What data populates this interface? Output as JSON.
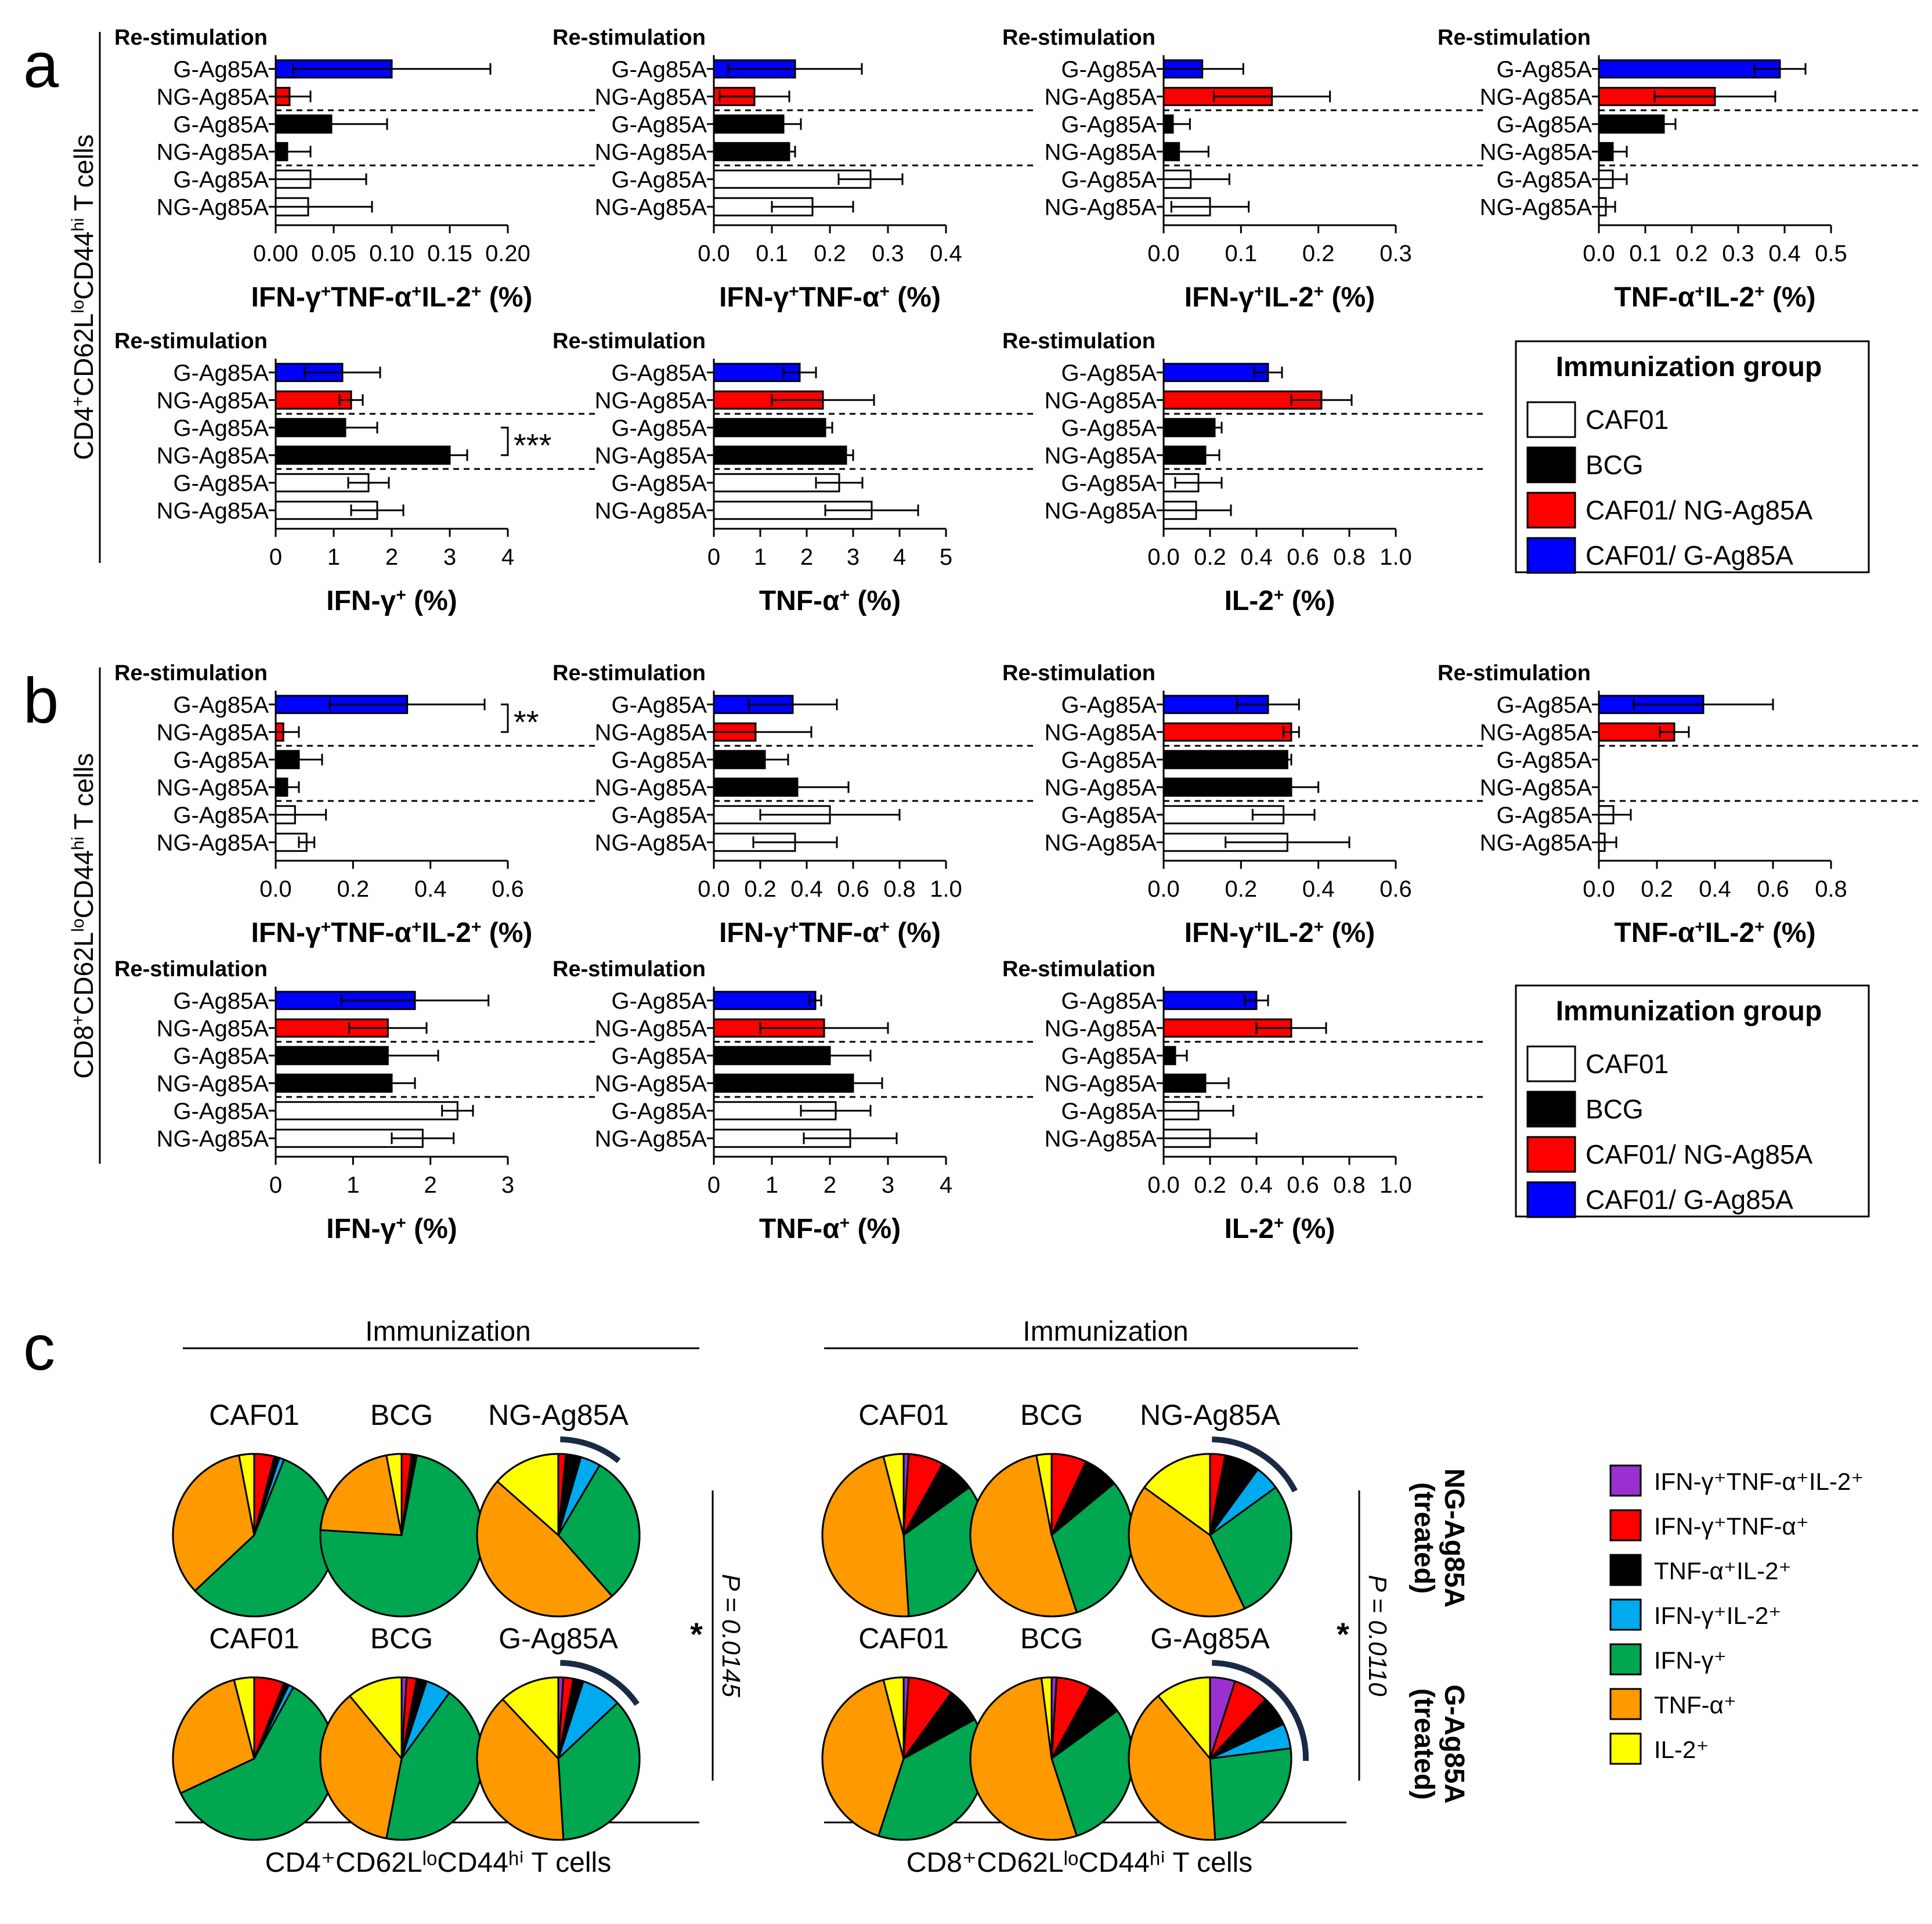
{
  "panels": {
    "a": {
      "letter": "a",
      "row_title_pre": "CD4",
      "row_title_mid": "CD62L",
      "row_title_lo": "lo",
      "row_title_cd44": "CD44",
      "row_title_hi": "hi",
      "row_title_end": " T cells"
    },
    "b": {
      "letter": "b",
      "row_title_pre": "CD8",
      "row_title_mid": "CD62L",
      "row_title_lo": "lo",
      "row_title_cd44": "CD44",
      "row_title_hi": "hi",
      "row_title_end": " T cells"
    },
    "c": {
      "letter": "c"
    }
  },
  "common": {
    "restim_label": "Re-stimulation",
    "row_labels": [
      "G-Ag85A",
      "NG-Ag85A",
      "G-Ag85A",
      "NG-Ag85A",
      "G-Ag85A",
      "NG-Ag85A"
    ],
    "row_groups": [
      "CAF01/ G-Ag85A",
      "CAF01/ NG-Ag85A",
      "BCG",
      "BCG",
      "CAF01",
      "CAF01"
    ]
  },
  "legend_bar": {
    "title": "Immunization group",
    "items": [
      {
        "label": "CAF01",
        "color": "#ffffff"
      },
      {
        "label": "BCG",
        "color": "#000000"
      },
      {
        "label": "CAF01/ NG-Ag85A",
        "color": "#ff0000"
      },
      {
        "label": "CAF01/ G-Ag85A",
        "color": "#0000ff"
      }
    ]
  },
  "chart_data": [
    {
      "type": "bar",
      "panel": "a",
      "title": "IFN-γ⁺TNF-α⁺IL-2⁺ (%)",
      "xlabel": "IFN-γ+TNF-α+IL-2+ (%)",
      "xlim": [
        0,
        0.2
      ],
      "ticks": [
        0.0,
        0.05,
        0.1,
        0.15,
        0.2
      ],
      "tick_labels": [
        "0.00",
        "0.05",
        "0.10",
        "0.15",
        "0.20"
      ],
      "values": [
        0.1,
        0.012,
        0.048,
        0.01,
        0.03,
        0.028
      ],
      "errors": [
        0.085,
        0.018,
        0.048,
        0.02,
        0.048,
        0.055
      ],
      "sig": ""
    },
    {
      "type": "bar",
      "panel": "a",
      "title": "IFN-γ⁺TNF-α⁺ (%)",
      "xlabel": "IFN-γ+TNF-α+ (%)",
      "xlim": [
        0,
        0.4
      ],
      "ticks": [
        0.0,
        0.1,
        0.2,
        0.3,
        0.4
      ],
      "tick_labels": [
        "0.0",
        "0.1",
        "0.2",
        "0.3",
        "0.4"
      ],
      "values": [
        0.14,
        0.07,
        0.12,
        0.13,
        0.27,
        0.17
      ],
      "errors": [
        0.115,
        0.06,
        0.03,
        0.01,
        0.055,
        0.07
      ],
      "sig": ""
    },
    {
      "type": "bar",
      "panel": "a",
      "title": "IFN-γ⁺IL-2⁺ (%)",
      "xlabel": "IFN-γ+IL-2+ (%)",
      "xlim": [
        0,
        0.3
      ],
      "ticks": [
        0.0,
        0.1,
        0.2,
        0.3
      ],
      "tick_labels": [
        "0.0",
        "0.1",
        "0.2",
        "0.3"
      ],
      "values": [
        0.05,
        0.14,
        0.012,
        0.02,
        0.035,
        0.06
      ],
      "errors": [
        0.053,
        0.075,
        0.022,
        0.038,
        0.05,
        0.05
      ],
      "sig": ""
    },
    {
      "type": "bar",
      "panel": "a",
      "title": "TNF-α⁺IL-2⁺ (%)",
      "xlabel": "TNF-α+IL-2+ (%)",
      "xlim": [
        0,
        0.5
      ],
      "ticks": [
        0.0,
        0.1,
        0.2,
        0.3,
        0.4,
        0.5
      ],
      "tick_labels": [
        "0.0",
        "0.1",
        "0.2",
        "0.3",
        "0.4",
        "0.5"
      ],
      "values": [
        0.39,
        0.25,
        0.14,
        0.03,
        0.03,
        0.015
      ],
      "errors": [
        0.055,
        0.13,
        0.025,
        0.03,
        0.03,
        0.02
      ],
      "sig": ""
    },
    {
      "type": "bar",
      "panel": "a",
      "title": "IFN-γ⁺ (%)",
      "xlabel": "IFN-γ+ (%)",
      "xlim": [
        0,
        4
      ],
      "ticks": [
        0,
        1,
        2,
        3,
        4
      ],
      "tick_labels": [
        "0",
        "1",
        "2",
        "3",
        "4"
      ],
      "values": [
        1.15,
        1.3,
        1.2,
        3.0,
        1.6,
        1.75
      ],
      "errors": [
        0.65,
        0.2,
        0.55,
        0.3,
        0.35,
        0.45
      ],
      "sig": "***"
    },
    {
      "type": "bar",
      "panel": "a",
      "title": "TNF-α⁺ (%)",
      "xlabel": "TNF-α+ (%)",
      "xlim": [
        0,
        5
      ],
      "ticks": [
        0,
        1,
        2,
        3,
        4,
        5
      ],
      "tick_labels": [
        "0",
        "1",
        "2",
        "3",
        "4",
        "5"
      ],
      "values": [
        1.85,
        2.35,
        2.4,
        2.85,
        2.7,
        3.4
      ],
      "errors": [
        0.35,
        1.1,
        0.15,
        0.15,
        0.5,
        1.0
      ],
      "sig": ""
    },
    {
      "type": "bar",
      "panel": "a",
      "title": "IL-2⁺ (%)",
      "xlabel": "IL-2+ (%)",
      "xlim": [
        0,
        1.0
      ],
      "ticks": [
        0.0,
        0.2,
        0.4,
        0.6,
        0.8,
        1.0
      ],
      "tick_labels": [
        "0.0",
        "0.2",
        "0.4",
        "0.6",
        "0.8",
        "1.0"
      ],
      "values": [
        0.45,
        0.68,
        0.22,
        0.18,
        0.15,
        0.14
      ],
      "errors": [
        0.06,
        0.13,
        0.03,
        0.06,
        0.1,
        0.15
      ],
      "sig": ""
    },
    {
      "type": "bar",
      "panel": "b",
      "title": "IFN-γ⁺TNF-α⁺IL-2⁺ (%)",
      "xlabel": "IFN-γ+TNF-α+IL-2+ (%)",
      "xlim": [
        0,
        0.6
      ],
      "ticks": [
        0.0,
        0.2,
        0.4,
        0.6
      ],
      "tick_labels": [
        "0.0",
        "0.2",
        "0.4",
        "0.6"
      ],
      "values": [
        0.34,
        0.02,
        0.06,
        0.03,
        0.05,
        0.08
      ],
      "errors": [
        0.2,
        0.04,
        0.06,
        0.03,
        0.08,
        0.02
      ],
      "sig": "**"
    },
    {
      "type": "bar",
      "panel": "b",
      "title": "IFN-γ⁺TNF-α⁺ (%)",
      "xlabel": "IFN-γ+TNF-α+ (%)",
      "xlim": [
        0,
        1.0
      ],
      "ticks": [
        0.0,
        0.2,
        0.4,
        0.6,
        0.8,
        1.0
      ],
      "tick_labels": [
        "0.0",
        "0.2",
        "0.4",
        "0.6",
        "0.8",
        "1.0"
      ],
      "values": [
        0.34,
        0.18,
        0.22,
        0.36,
        0.5,
        0.35
      ],
      "errors": [
        0.19,
        0.24,
        0.1,
        0.22,
        0.3,
        0.18
      ],
      "sig": ""
    },
    {
      "type": "bar",
      "panel": "b",
      "title": "IFN-γ⁺IL-2⁺ (%)",
      "xlabel": "IFN-γ+IL-2+ (%)",
      "xlim": [
        0,
        0.6
      ],
      "ticks": [
        0.0,
        0.2,
        0.4,
        0.6
      ],
      "tick_labels": [
        "0.0",
        "0.2",
        "0.4",
        "0.6"
      ],
      "values": [
        0.27,
        0.33,
        0.32,
        0.33,
        0.31,
        0.32
      ],
      "errors": [
        0.08,
        0.02,
        0.01,
        0.07,
        0.08,
        0.16
      ],
      "sig": ""
    },
    {
      "type": "bar",
      "panel": "b",
      "title": "TNF-α⁺IL-2⁺ (%)",
      "xlabel": "TNF-α+IL-2+ (%)",
      "xlim": [
        0,
        0.8
      ],
      "ticks": [
        0.0,
        0.2,
        0.4,
        0.6,
        0.8
      ],
      "tick_labels": [
        "0.0",
        "0.2",
        "0.4",
        "0.6",
        "0.8"
      ],
      "values": [
        0.36,
        0.26,
        0.0,
        0.0,
        0.05,
        0.02
      ],
      "errors": [
        0.24,
        0.05,
        0.0,
        0.0,
        0.06,
        0.04
      ],
      "sig": ""
    },
    {
      "type": "bar",
      "panel": "b",
      "title": "IFN-γ⁺ (%)",
      "xlabel": "IFN-γ+ (%)",
      "xlim": [
        0,
        3
      ],
      "ticks": [
        0,
        1,
        2,
        3
      ],
      "tick_labels": [
        "0",
        "1",
        "2",
        "3"
      ],
      "values": [
        1.8,
        1.45,
        1.45,
        1.5,
        2.35,
        1.9
      ],
      "errors": [
        0.95,
        0.5,
        0.65,
        0.3,
        0.2,
        0.4
      ],
      "sig": ""
    },
    {
      "type": "bar",
      "panel": "b",
      "title": "TNF-α⁺ (%)",
      "xlabel": "TNF-α+ (%)",
      "xlim": [
        0,
        4
      ],
      "ticks": [
        0,
        1,
        2,
        3,
        4
      ],
      "tick_labels": [
        "0",
        "1",
        "2",
        "3",
        "4"
      ],
      "values": [
        1.75,
        1.9,
        2.0,
        2.4,
        2.1,
        2.35
      ],
      "errors": [
        0.1,
        1.1,
        0.7,
        0.5,
        0.6,
        0.8
      ],
      "sig": ""
    },
    {
      "type": "bar",
      "panel": "b",
      "title": "IL-2⁺ (%)",
      "xlabel": "IL-2+ (%)",
      "xlim": [
        0,
        1.0
      ],
      "ticks": [
        0.0,
        0.2,
        0.4,
        0.6,
        0.8,
        1.0
      ],
      "tick_labels": [
        "0.0",
        "0.2",
        "0.4",
        "0.6",
        "0.8",
        "1.0"
      ],
      "values": [
        0.4,
        0.55,
        0.05,
        0.18,
        0.15,
        0.2
      ],
      "errors": [
        0.05,
        0.15,
        0.05,
        0.1,
        0.15,
        0.2
      ],
      "sig": ""
    },
    {
      "type": "pie",
      "panel": "c",
      "section": "CD4",
      "row": "NG-Ag85A",
      "title": "CAF01",
      "values": [
        0,
        4,
        1,
        1,
        57,
        34,
        3
      ]
    },
    {
      "type": "pie",
      "panel": "c",
      "section": "CD4",
      "row": "NG-Ag85A",
      "title": "BCG",
      "values": [
        0,
        2,
        1,
        0,
        73,
        21,
        3
      ]
    },
    {
      "type": "pie",
      "panel": "c",
      "section": "CD4",
      "row": "NG-Ag85A",
      "title": "NG-Ag85A",
      "values": [
        0,
        1.5,
        3,
        4,
        30,
        48,
        13.5
      ]
    },
    {
      "type": "pie",
      "panel": "c",
      "section": "CD4",
      "row": "G-Ag85A",
      "title": "CAF01",
      "values": [
        0,
        6,
        1,
        1,
        60,
        28,
        4
      ]
    },
    {
      "type": "pie",
      "panel": "c",
      "section": "CD4",
      "row": "G-Ag85A",
      "title": "BCG",
      "values": [
        1,
        2,
        2,
        5,
        43,
        36,
        11
      ]
    },
    {
      "type": "pie",
      "panel": "c",
      "section": "CD4",
      "row": "G-Ag85A",
      "title": "G-Ag85A",
      "values": [
        1,
        2,
        2,
        8,
        36,
        39,
        12
      ]
    },
    {
      "type": "pie",
      "panel": "c",
      "section": "CD8",
      "row": "NG-Ag85A",
      "title": "CAF01",
      "values": [
        1,
        7,
        7,
        0,
        34,
        47,
        4
      ]
    },
    {
      "type": "pie",
      "panel": "c",
      "section": "CD8",
      "row": "NG-Ag85A",
      "title": "BCG",
      "values": [
        0,
        7,
        7,
        0,
        31,
        52,
        3
      ]
    },
    {
      "type": "pie",
      "panel": "c",
      "section": "CD8",
      "row": "NG-Ag85A",
      "title": "NG-Ag85A",
      "values": [
        0,
        3,
        7,
        5,
        28,
        42,
        15
      ]
    },
    {
      "type": "pie",
      "panel": "c",
      "section": "CD8",
      "row": "G-Ag85A",
      "title": "CAF01",
      "values": [
        1,
        9,
        7,
        0,
        38,
        41,
        4
      ]
    },
    {
      "type": "pie",
      "panel": "c",
      "section": "CD8",
      "row": "G-Ag85A",
      "title": "BCG",
      "values": [
        1,
        7,
        7,
        0,
        30,
        53,
        2
      ]
    },
    {
      "type": "pie",
      "panel": "c",
      "section": "CD8",
      "row": "G-Ag85A",
      "title": "G-Ag85A",
      "values": [
        5,
        7,
        6,
        5,
        26,
        40,
        11
      ]
    }
  ],
  "pie_legend": {
    "items": [
      {
        "label": "IFN-γ⁺TNF-α⁺IL-2⁺",
        "color": "#9b30d0"
      },
      {
        "label": "IFN-γ⁺TNF-α⁺",
        "color": "#ff0000"
      },
      {
        "label": "TNF-α⁺IL-2⁺",
        "color": "#000000"
      },
      {
        "label": "IFN-γ⁺IL-2⁺",
        "color": "#00aaee"
      },
      {
        "label": "IFN-γ⁺",
        "color": "#00a650"
      },
      {
        "label": "TNF-α⁺",
        "color": "#ff9900"
      },
      {
        "label": "IL-2⁺",
        "color": "#ffff00"
      }
    ]
  },
  "panel_c": {
    "immunization_label": "Immunization",
    "cd4_footer": "CD4⁺CD62LˡᵒCD44ʰⁱ T cells",
    "cd8_footer": "CD8⁺CD62LˡᵒCD44ʰⁱ T cells",
    "cd4_p": "P = 0.0145",
    "cd8_p": "P = 0.0110",
    "star": "*",
    "treated_ng_1": "NG-Ag85A",
    "treated_ng_2": "(treated)",
    "treated_g_1": "G-Ag85A",
    "treated_g_2": "(treated)"
  }
}
